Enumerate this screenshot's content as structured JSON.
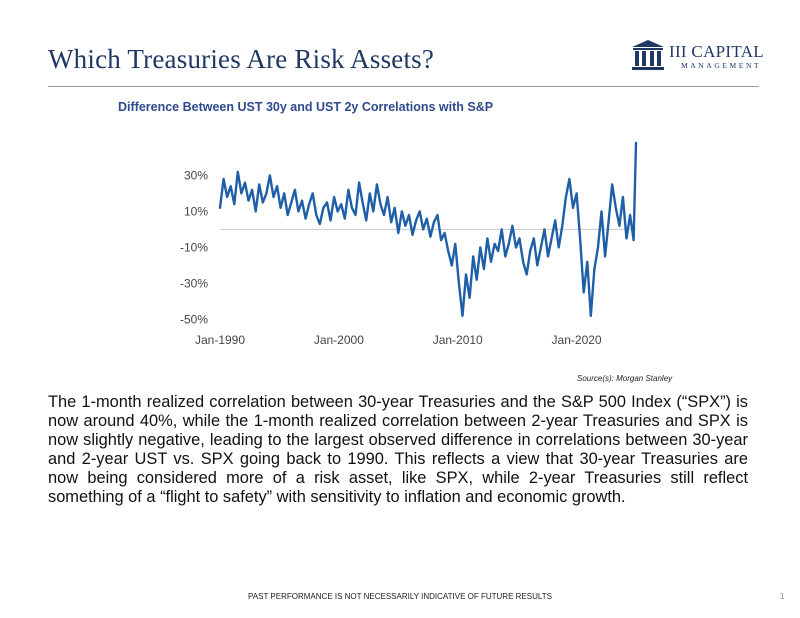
{
  "slide": {
    "title": "Which Treasuries Are Risk Assets?",
    "logo_name": "III CAPITAL",
    "logo_sub": "MANAGEMENT",
    "source": "Source(s): Morgan Stanley",
    "body": "The 1-month realized correlation between 30-year Treasuries and the S&P 500 Index (“SPX”) is now around 40%, while the 1-month realized correlation between 2-year Treasuries and SPX is now slightly negative, leading to the largest observed difference in correlations between 30-year and 2-year UST vs. SPX going back to 1990. This reflects a view that 30-year Treasuries are now being considered more of a risk asset, like SPX, while 2-year Treasuries still reflect something of a “flight to safety” with sensitivity to inflation and economic growth.",
    "footer": "PAST PERFORMANCE IS NOT NECESSARILY INDICATIVE OF FUTURE RESULTS",
    "page_number": "1"
  },
  "colors": {
    "title": "#1f3864",
    "chart_title": "#2e4a8c",
    "series": "#1f5fa8",
    "zero_line": "#c8c8c8"
  },
  "chart_data": {
    "type": "line",
    "title": "Difference Between UST 30y and UST 2y Correlations with S&P",
    "xlabel": "",
    "ylabel": "",
    "x_ticks": [
      {
        "year": 1990,
        "label": "Jan-1990"
      },
      {
        "year": 2000,
        "label": "Jan-2000"
      },
      {
        "year": 2010,
        "label": "Jan-2010"
      },
      {
        "year": 2020,
        "label": "Jan-2020"
      }
    ],
    "y_ticks": [
      {
        "value": 30,
        "label": "30%"
      },
      {
        "value": 10,
        "label": "10%"
      },
      {
        "value": -10,
        "label": "-10%"
      },
      {
        "value": -30,
        "label": "-30%"
      },
      {
        "value": -50,
        "label": "-50%"
      }
    ],
    "xlim": [
      1990,
      2025
    ],
    "ylim": [
      -52,
      48
    ],
    "zero_line": 0,
    "grid": false,
    "series": [
      {
        "x": [
          1990.0,
          1990.3,
          1990.6,
          1990.9,
          1991.2,
          1991.5,
          1991.8,
          1992.1,
          1992.4,
          1992.7,
          1993.0,
          1993.3,
          1993.6,
          1993.9,
          1994.2,
          1994.5,
          1994.8,
          1995.1,
          1995.4,
          1995.7,
          1996.0,
          1996.3,
          1996.6,
          1996.9,
          1997.2,
          1997.5,
          1997.8,
          1998.1,
          1998.4,
          1998.7,
          1999.0,
          1999.3,
          1999.6,
          1999.9,
          2000.2,
          2000.5,
          2000.8,
          2001.1,
          2001.4,
          2001.7,
          2002.0,
          2002.3,
          2002.6,
          2002.9,
          2003.2,
          2003.5,
          2003.8,
          2004.1,
          2004.4,
          2004.7,
          2005.0,
          2005.3,
          2005.6,
          2005.9,
          2006.2,
          2006.5,
          2006.8,
          2007.1,
          2007.4,
          2007.7,
          2008.0,
          2008.3,
          2008.6,
          2008.9,
          2009.2,
          2009.5,
          2009.8,
          2010.1,
          2010.4,
          2010.7,
          2011.0,
          2011.3,
          2011.6,
          2011.9,
          2012.2,
          2012.5,
          2012.8,
          2013.1,
          2013.4,
          2013.7,
          2014.0,
          2014.3,
          2014.6,
          2014.9,
          2015.2,
          2015.5,
          2015.8,
          2016.1,
          2016.4,
          2016.7,
          2017.0,
          2017.3,
          2017.6,
          2017.9,
          2018.2,
          2018.5,
          2018.8,
          2019.1,
          2019.4,
          2019.7,
          2020.0,
          2020.3,
          2020.6,
          2020.9,
          2021.2,
          2021.5,
          2021.8,
          2022.1,
          2022.4,
          2022.7,
          2023.0,
          2023.3,
          2023.6,
          2023.9,
          2024.2,
          2024.5,
          2024.8,
          2025.0
        ],
        "y": [
          12,
          28,
          18,
          24,
          14,
          32,
          20,
          26,
          16,
          22,
          10,
          25,
          15,
          20,
          30,
          18,
          24,
          12,
          20,
          8,
          15,
          22,
          10,
          16,
          6,
          14,
          20,
          8,
          3,
          12,
          15,
          5,
          18,
          10,
          14,
          6,
          22,
          12,
          8,
          26,
          15,
          5,
          20,
          10,
          25,
          14,
          8,
          18,
          4,
          12,
          -2,
          10,
          2,
          8,
          -3,
          5,
          10,
          0,
          6,
          -4,
          4,
          8,
          -6,
          -2,
          -12,
          -20,
          -8,
          -30,
          -48,
          -25,
          -38,
          -15,
          -28,
          -10,
          -22,
          -5,
          -18,
          -8,
          -12,
          0,
          -15,
          -8,
          2,
          -10,
          -5,
          -18,
          -25,
          -12,
          -5,
          -20,
          -10,
          0,
          -15,
          -5,
          5,
          -10,
          2,
          18,
          28,
          12,
          20,
          -5,
          -35,
          -18,
          -48,
          -22,
          -10,
          10,
          -15,
          5,
          25,
          12,
          2,
          18,
          -5,
          8,
          -6,
          48
        ]
      }
    ]
  }
}
